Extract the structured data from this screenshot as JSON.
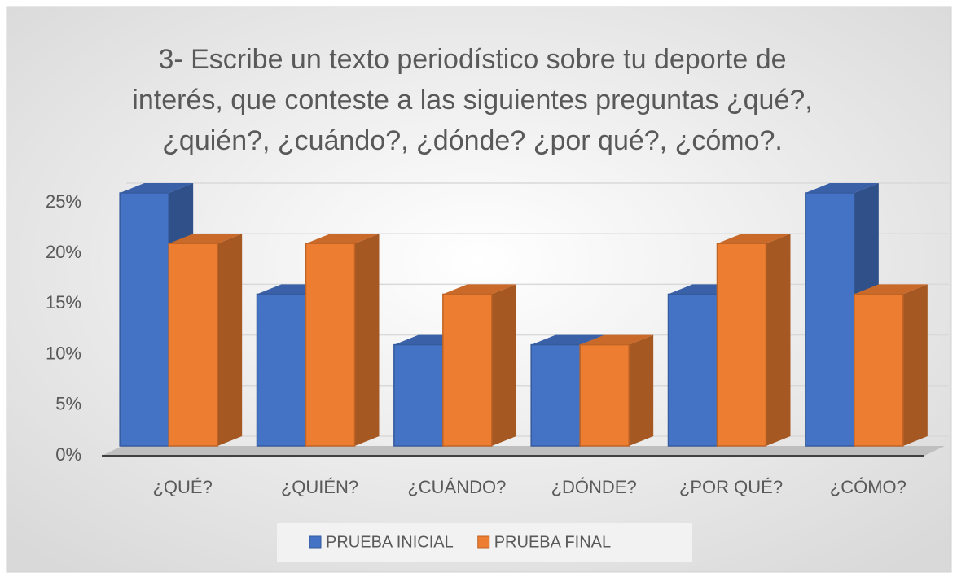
{
  "chart_data": {
    "type": "bar3d",
    "title": [
      "3- Escribe un texto periodístico sobre tu deporte de",
      "interés, que conteste a las siguientes preguntas ¿qué?,",
      "¿quién?, ¿cuándo?, ¿dónde? ¿por qué?, ¿cómo?."
    ],
    "categories": [
      "¿QUÉ?",
      "¿QUIÉN?",
      "¿CUÁNDO?",
      "¿DÓNDE?",
      "¿POR QUÉ?",
      "¿CÓMO?"
    ],
    "series": [
      {
        "name": "PRUEBA INICIAL",
        "color": "#4472c4",
        "values": [
          25,
          15,
          10,
          10,
          15,
          25
        ]
      },
      {
        "name": "PRUEBA FINAL",
        "color": "#ed7d31",
        "values": [
          20,
          20,
          15,
          10,
          20,
          15
        ]
      }
    ],
    "ylim": [
      0,
      25
    ],
    "yticks": [
      {
        "value": 0,
        "label": "0%"
      },
      {
        "value": 5,
        "label": "5%"
      },
      {
        "value": 10,
        "label": "10%"
      },
      {
        "value": 15,
        "label": "15%"
      },
      {
        "value": 20,
        "label": "20%"
      },
      {
        "value": 25,
        "label": "25%"
      }
    ],
    "grid": true,
    "legend": "bottom"
  }
}
